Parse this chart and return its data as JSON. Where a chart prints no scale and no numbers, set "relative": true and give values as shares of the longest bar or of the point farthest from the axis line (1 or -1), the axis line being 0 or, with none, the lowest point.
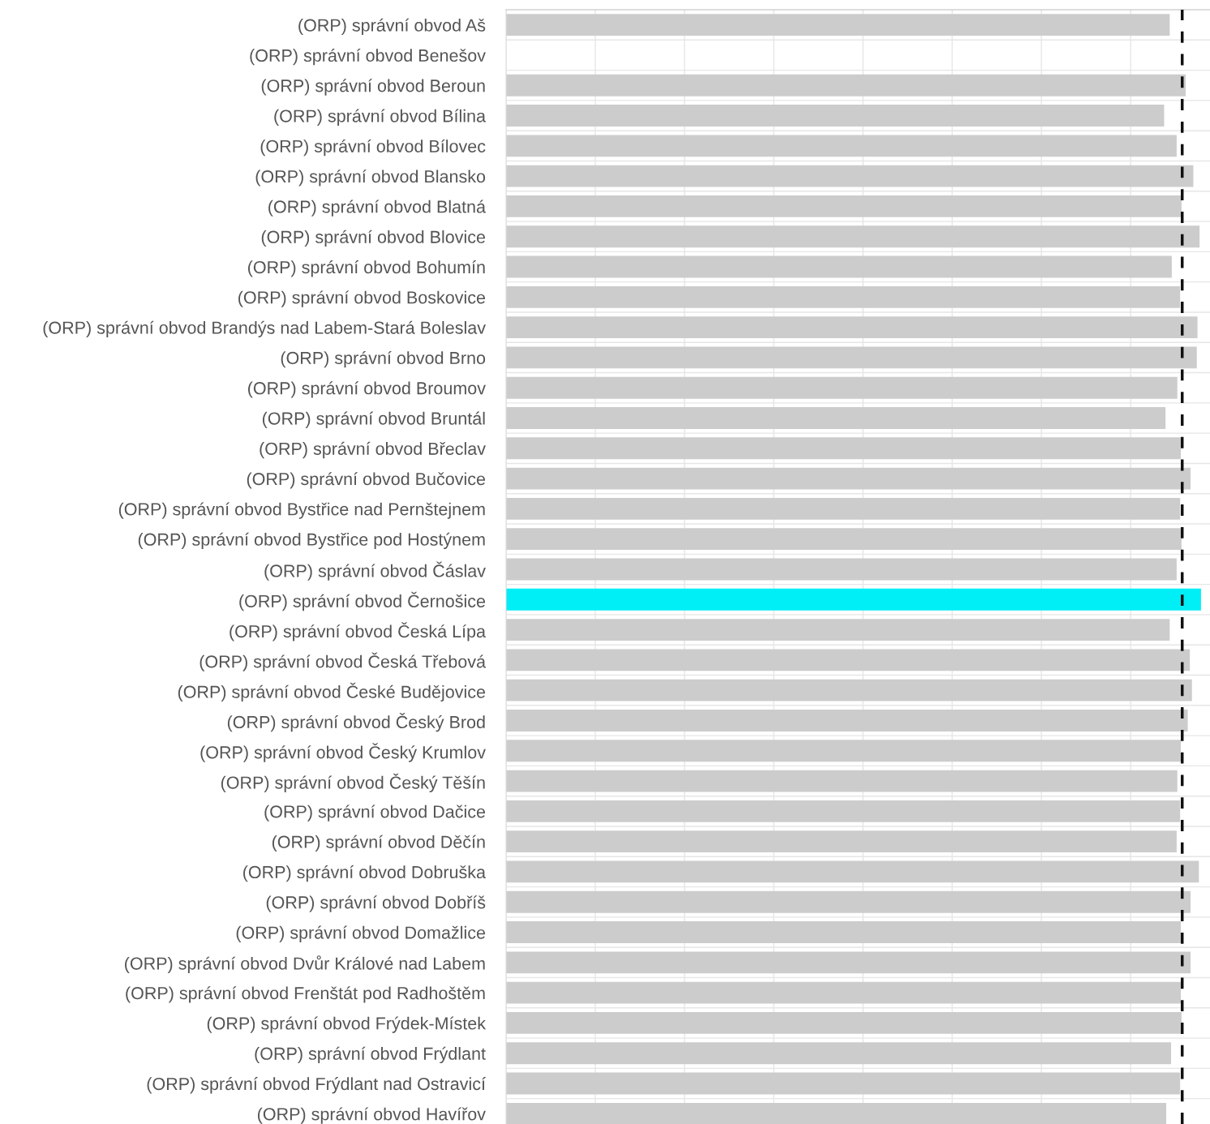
{
  "chart_data": {
    "type": "bar",
    "orientation": "horizontal",
    "relative": true,
    "grid": "x",
    "categories": [
      "(ORP) správní obvod Aš",
      "(ORP) správní obvod Benešov",
      "(ORP) správní obvod Beroun",
      "(ORP) správní obvod Bílina",
      "(ORP) správní obvod Bílovec",
      "(ORP) správní obvod Blansko",
      "(ORP) správní obvod Blatná",
      "(ORP) správní obvod Blovice",
      "(ORP) správní obvod Bohumín",
      "(ORP) správní obvod Boskovice",
      "(ORP) správní obvod Brandýs nad Labem-Stará Boleslav",
      "(ORP) správní obvod Brno",
      "(ORP) správní obvod Broumov",
      "(ORP) správní obvod Bruntál",
      "(ORP) správní obvod Břeclav",
      "(ORP) správní obvod Bučovice",
      "(ORP) správní obvod Bystřice nad Pernštejnem",
      "(ORP) správní obvod Bystřice pod Hostýnem",
      "(ORP) správní obvod Čáslav",
      "(ORP) správní obvod Černošice",
      "(ORP) správní obvod Česká Lípa",
      "(ORP) správní obvod Česká Třebová",
      "(ORP) správní obvod České Budějovice",
      "(ORP) správní obvod Český Brod",
      "(ORP) správní obvod Český Krumlov",
      "(ORP) správní obvod Český Těšín",
      "(ORP) správní obvod Dačice",
      "(ORP) správní obvod Děčín",
      "(ORP) správní obvod Dobruška",
      "(ORP) správní obvod Dobříš",
      "(ORP) správní obvod Domažlice",
      "(ORP) správní obvod Dvůr Králové nad Labem",
      "(ORP) správní obvod Frenštát pod Radhoštěm",
      "(ORP) správní obvod Frýdek-Místek",
      "(ORP) správní obvod Frýdlant",
      "(ORP) správní obvod Frýdlant nad Ostravicí",
      "(ORP) správní obvod Havířov"
    ],
    "values": [
      0.955,
      null,
      0.978,
      0.947,
      0.965,
      0.989,
      0.972,
      0.998,
      0.958,
      0.97,
      0.995,
      0.994,
      0.966,
      0.949,
      0.971,
      0.985,
      0.97,
      0.972,
      0.965,
      1.0,
      0.955,
      0.984,
      0.987,
      0.981,
      0.971,
      0.966,
      0.97,
      0.965,
      0.997,
      0.985,
      0.971,
      0.985,
      0.971,
      0.972,
      0.957,
      0.97,
      0.95
    ],
    "colors": [
      "#cccccc",
      "#cccccc",
      "#cccccc",
      "#cccccc",
      "#cccccc",
      "#cccccc",
      "#cccccc",
      "#cccccc",
      "#cccccc",
      "#cccccc",
      "#cccccc",
      "#cccccc",
      "#cccccc",
      "#cccccc",
      "#cccccc",
      "#cccccc",
      "#cccccc",
      "#cccccc",
      "#cccccc",
      "#00eef5",
      "#cccccc",
      "#cccccc",
      "#cccccc",
      "#cccccc",
      "#cccccc",
      "#cccccc",
      "#cccccc",
      "#cccccc",
      "#cccccc",
      "#cccccc",
      "#cccccc",
      "#cccccc",
      "#cccccc",
      "#cccccc",
      "#cccccc",
      "#cccccc",
      "#cccccc"
    ],
    "ref_lines": [
      {
        "axis": "x",
        "value": 0.973,
        "color": "#111111",
        "line_style": "dashed"
      }
    ]
  }
}
